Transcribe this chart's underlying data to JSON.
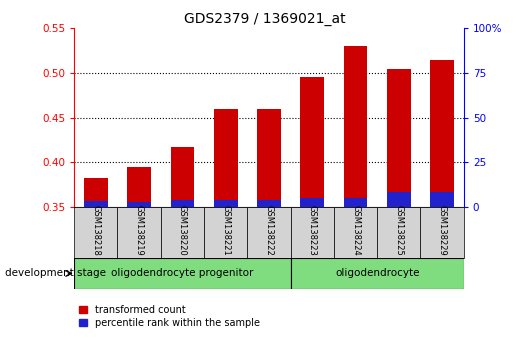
{
  "title": "GDS2379 / 1369021_at",
  "samples": [
    "GSM138218",
    "GSM138219",
    "GSM138220",
    "GSM138221",
    "GSM138222",
    "GSM138223",
    "GSM138224",
    "GSM138225",
    "GSM138229"
  ],
  "transformed_count": [
    0.383,
    0.395,
    0.417,
    0.46,
    0.46,
    0.495,
    0.53,
    0.505,
    0.515
  ],
  "percentile_rank_val": [
    0.357,
    0.356,
    0.358,
    0.358,
    0.358,
    0.36,
    0.36,
    0.367,
    0.367
  ],
  "bar_bottom": 0.35,
  "ylim_left": [
    0.35,
    0.55
  ],
  "ylim_right": [
    0,
    100
  ],
  "yticks_left": [
    0.35,
    0.4,
    0.45,
    0.5,
    0.55
  ],
  "yticks_right": [
    0,
    25,
    50,
    75,
    100
  ],
  "ytick_labels_right": [
    "0",
    "25",
    "50",
    "75",
    "100%"
  ],
  "red_color": "#cc0000",
  "blue_color": "#2222cc",
  "group1_label": "oligodendrocyte progenitor",
  "group2_label": "oligodendrocyte",
  "group1_count": 5,
  "group2_count": 4,
  "dev_stage_label": "development stage",
  "legend1": "transformed count",
  "legend2": "percentile rank within the sample",
  "bar_width": 0.55,
  "sample_box_color": "#d3d3d3",
  "group_fill": "#7fdd7f",
  "fig_width": 5.3,
  "fig_height": 3.54,
  "dpi": 100
}
